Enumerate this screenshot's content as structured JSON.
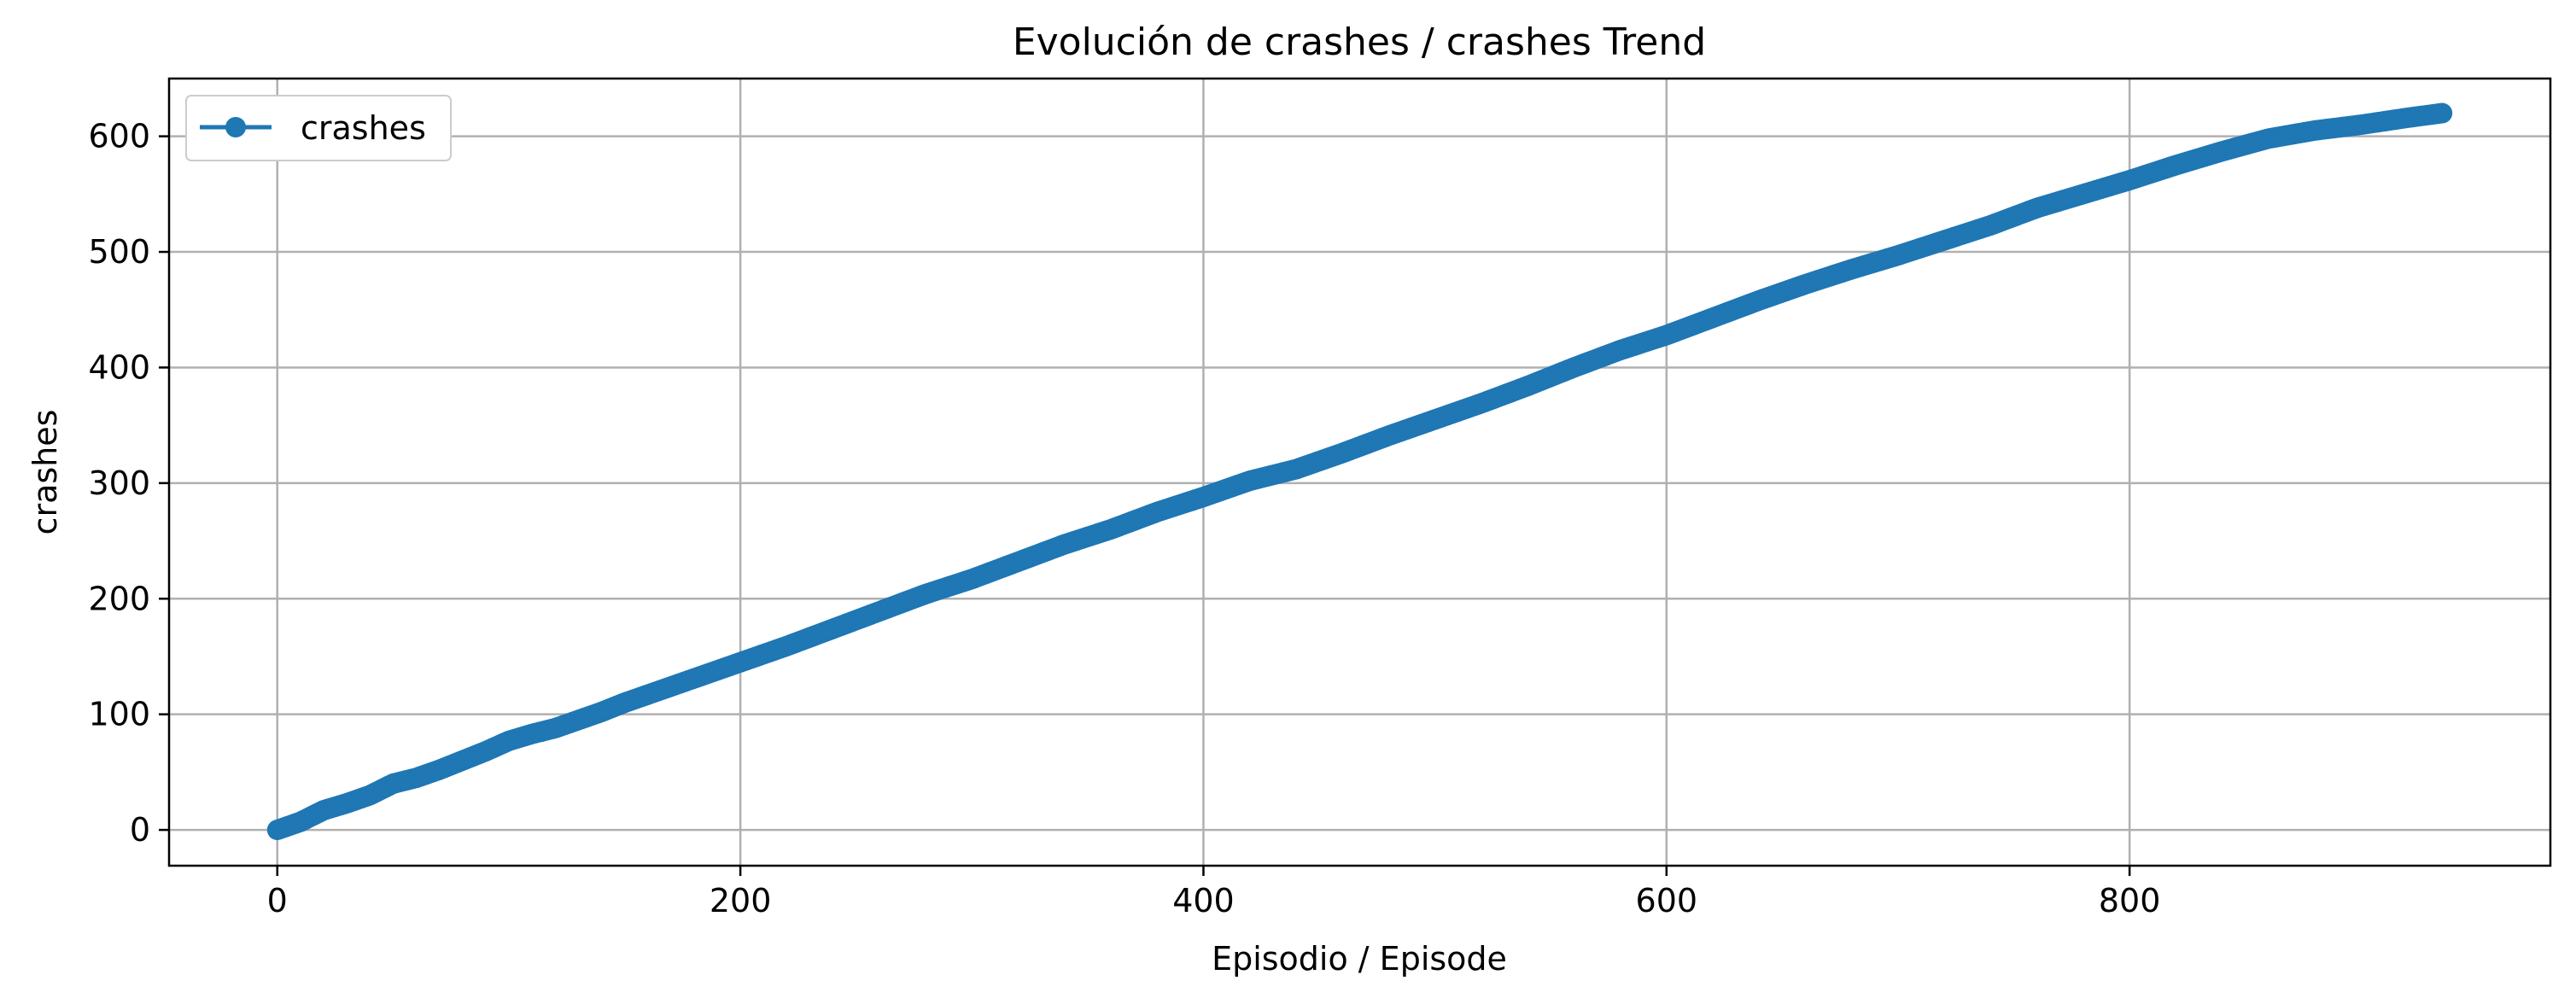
{
  "chart_data": {
    "type": "line",
    "title": "Evolución de crashes / crashes Trend",
    "xlabel": "Episodio / Episode",
    "ylabel": "crashes",
    "xlim": [
      -46.75,
      981.75
    ],
    "ylim": [
      -30.95,
      649.95
    ],
    "xticks": [
      0,
      200,
      400,
      600,
      800
    ],
    "yticks": [
      0,
      100,
      200,
      300,
      400,
      500,
      600
    ],
    "grid": true,
    "legend_position": "upper-left",
    "series": [
      {
        "name": "crashes",
        "color": "#1f77b4",
        "marker": "circle",
        "x": [
          0,
          10,
          20,
          30,
          40,
          50,
          60,
          70,
          80,
          90,
          100,
          110,
          120,
          130,
          140,
          150,
          160,
          170,
          180,
          190,
          200,
          220,
          240,
          260,
          280,
          300,
          320,
          340,
          360,
          380,
          400,
          420,
          440,
          460,
          480,
          500,
          520,
          540,
          560,
          580,
          600,
          620,
          640,
          660,
          680,
          700,
          720,
          740,
          760,
          780,
          800,
          820,
          840,
          860,
          880,
          900,
          920,
          935
        ],
        "y": [
          0,
          7,
          17,
          23,
          30,
          40,
          45,
          52,
          60,
          68,
          77,
          83,
          88,
          95,
          102,
          110,
          117,
          124,
          131,
          138,
          145,
          159,
          174,
          189,
          204,
          217,
          232,
          247,
          260,
          275,
          288,
          302,
          312,
          326,
          341,
          355,
          369,
          384,
          400,
          415,
          428,
          443,
          458,
          472,
          485,
          497,
          510,
          523,
          538,
          550,
          562,
          575,
          587,
          598,
          605,
          610,
          616,
          620
        ]
      }
    ]
  }
}
